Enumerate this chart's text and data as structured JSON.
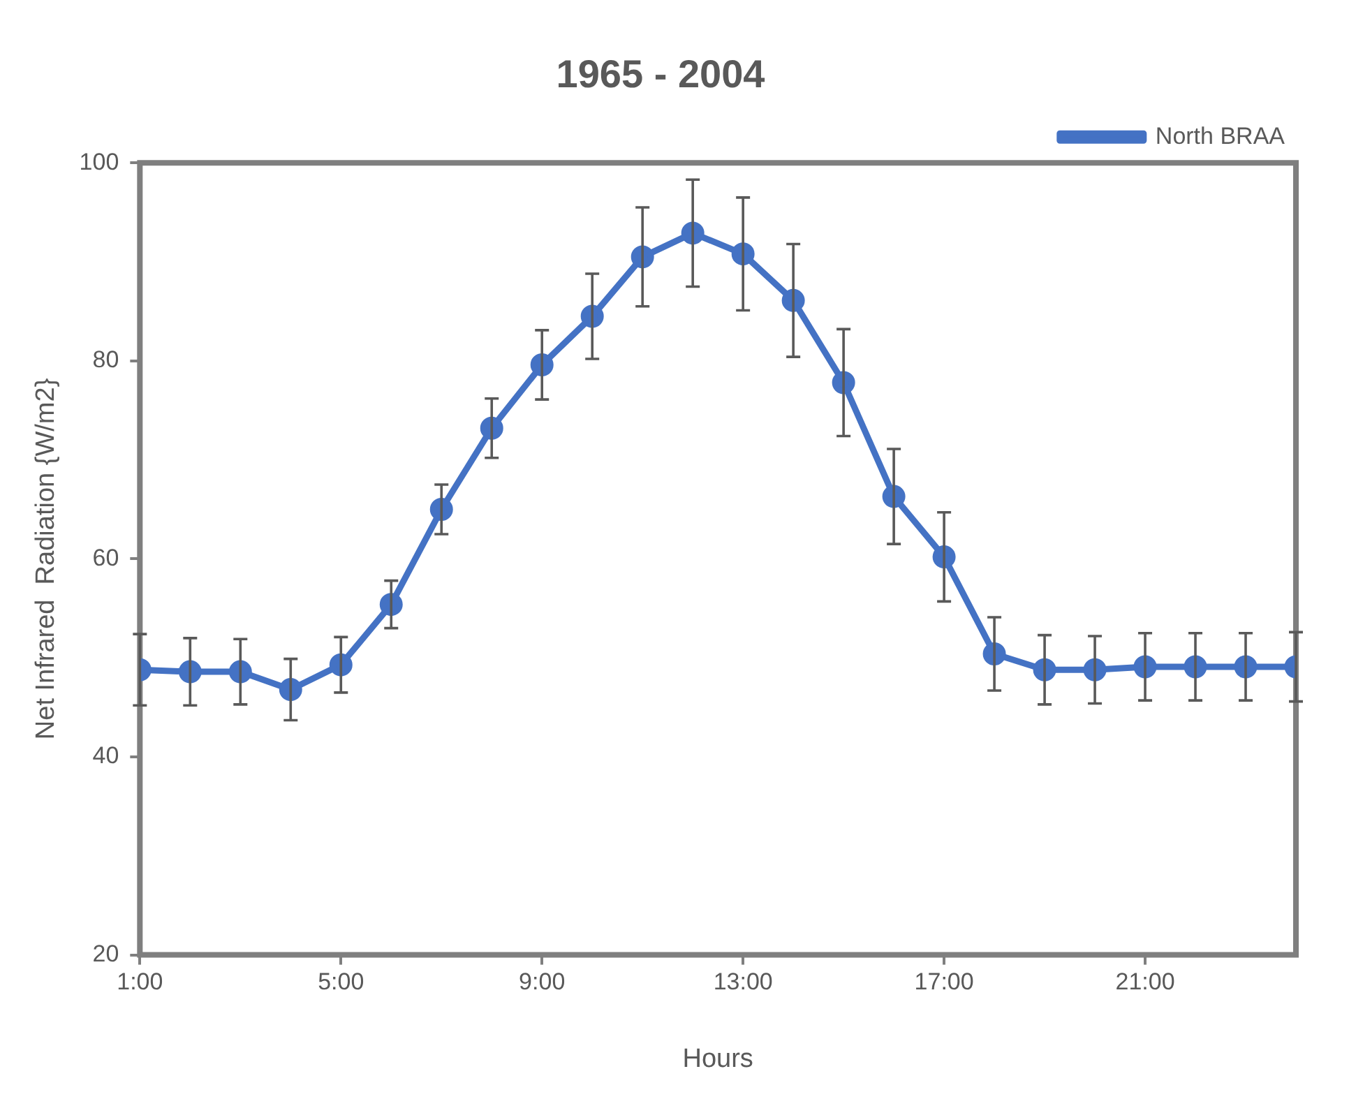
{
  "chart_data": {
    "type": "line",
    "title": "1965 - 2004",
    "xlabel": "Hours",
    "ylabel": "Net Infrared  Radiation {W/m2}",
    "x": [
      1,
      2,
      3,
      4,
      5,
      6,
      7,
      8,
      9,
      10,
      11,
      12,
      13,
      14,
      15,
      16,
      17,
      18,
      19,
      20,
      21,
      22,
      23,
      24
    ],
    "series": [
      {
        "name": "North BRAA",
        "color": "#4472c4",
        "values": [
          48.8,
          48.6,
          48.6,
          46.8,
          49.3,
          55.4,
          65.0,
          73.2,
          79.6,
          84.5,
          90.5,
          92.9,
          90.8,
          86.1,
          77.8,
          66.3,
          60.2,
          50.4,
          48.8,
          48.8,
          49.1,
          49.1,
          49.1,
          49.1
        ],
        "errors": [
          3.6,
          3.4,
          3.3,
          3.1,
          2.8,
          2.4,
          2.5,
          3.0,
          3.5,
          4.3,
          5.0,
          5.4,
          5.7,
          5.7,
          5.4,
          4.8,
          4.5,
          3.7,
          3.5,
          3.4,
          3.4,
          3.4,
          3.4,
          3.5
        ]
      }
    ],
    "xlim": [
      1,
      24
    ],
    "xticks": [
      {
        "value": 1,
        "label": "1:00"
      },
      {
        "value": 5,
        "label": "5:00"
      },
      {
        "value": 9,
        "label": "9:00"
      },
      {
        "value": 13,
        "label": "13:00"
      },
      {
        "value": 17,
        "label": "17:00"
      },
      {
        "value": 21,
        "label": "21:00"
      }
    ],
    "ylim": [
      20,
      100
    ],
    "yticks": [
      20,
      40,
      60,
      80,
      100
    ],
    "grid": false,
    "legend": "top right",
    "marker": "circle",
    "line_style": "solid"
  }
}
